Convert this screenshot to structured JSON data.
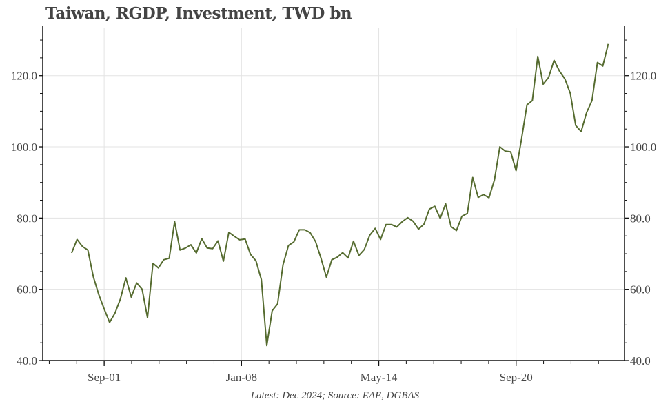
{
  "chart_data": {
    "type": "line",
    "title": "Taiwan, RGDP, Investment, TWD bn",
    "footer": "Latest: Dec 2024; Source: EAE, DGBAS",
    "xlabel": "",
    "ylabel": "",
    "ylim": [
      40,
      133.3
    ],
    "y_ticks": [
      40,
      60,
      80,
      100,
      120
    ],
    "y_tick_labels": [
      "40.0",
      "60.0",
      "80.0",
      "100.0",
      "120.0"
    ],
    "y_axis_both_sides": true,
    "x_ticks": [
      "2001-09",
      "2008-01",
      "2014-05",
      "2020-09"
    ],
    "x_tick_labels": [
      "Sep-01",
      "Jan-08",
      "May-14",
      "Sep-20"
    ],
    "xlim": [
      "1998-11",
      "2025-09"
    ],
    "grid": true,
    "line_color": "#556b2f",
    "frequency": "quarterly",
    "x": [
      "2000-03",
      "2000-06",
      "2000-09",
      "2000-12",
      "2001-03",
      "2001-06",
      "2001-09",
      "2001-12",
      "2002-03",
      "2002-06",
      "2002-09",
      "2002-12",
      "2003-03",
      "2003-06",
      "2003-09",
      "2003-12",
      "2004-03",
      "2004-06",
      "2004-09",
      "2004-12",
      "2005-03",
      "2005-06",
      "2005-09",
      "2005-12",
      "2006-03",
      "2006-06",
      "2006-09",
      "2006-12",
      "2007-03",
      "2007-06",
      "2007-09",
      "2007-12",
      "2008-03",
      "2008-06",
      "2008-09",
      "2008-12",
      "2009-03",
      "2009-06",
      "2009-09",
      "2009-12",
      "2010-03",
      "2010-06",
      "2010-09",
      "2010-12",
      "2011-03",
      "2011-06",
      "2011-09",
      "2011-12",
      "2012-03",
      "2012-06",
      "2012-09",
      "2012-12",
      "2013-03",
      "2013-06",
      "2013-09",
      "2013-12",
      "2014-03",
      "2014-06",
      "2014-09",
      "2014-12",
      "2015-03",
      "2015-06",
      "2015-09",
      "2015-12",
      "2016-03",
      "2016-06",
      "2016-09",
      "2016-12",
      "2017-03",
      "2017-06",
      "2017-09",
      "2017-12",
      "2018-03",
      "2018-06",
      "2018-09",
      "2018-12",
      "2019-03",
      "2019-06",
      "2019-09",
      "2019-12",
      "2020-03",
      "2020-06",
      "2020-09",
      "2020-12",
      "2021-03",
      "2021-06",
      "2021-09",
      "2021-12",
      "2022-03",
      "2022-06",
      "2022-09",
      "2022-12",
      "2023-03",
      "2023-06",
      "2023-09",
      "2023-12",
      "2024-03",
      "2024-06",
      "2024-09",
      "2024-12"
    ],
    "series": [
      {
        "values": [
          70.2,
          74.0,
          72.0,
          71.0,
          63.5,
          58.5,
          54.5,
          50.7,
          53.3,
          57.3,
          63.2,
          57.8,
          61.8,
          60.0,
          52.0,
          67.3,
          66.0,
          68.3,
          68.7,
          79.0,
          71.0,
          71.6,
          72.5,
          70.2,
          74.2,
          71.6,
          71.4,
          73.6,
          67.9,
          76.0,
          74.9,
          73.9,
          74.1,
          69.8,
          68.0,
          62.7,
          44.2,
          54.0,
          55.9,
          66.9,
          72.3,
          73.3,
          76.7,
          76.7,
          75.9,
          73.4,
          68.7,
          63.4,
          68.3,
          69.0,
          70.3,
          68.8,
          73.5,
          69.5,
          71.2,
          75.2,
          77.1,
          74.0,
          78.2,
          78.2,
          77.5,
          79.0,
          80.1,
          79.1,
          76.9,
          78.3,
          82.5,
          83.3,
          79.9,
          84.0,
          77.6,
          76.5,
          80.5,
          81.3,
          91.4,
          85.8,
          86.6,
          85.7,
          90.7,
          100.0,
          98.8,
          98.6,
          93.3,
          102.2,
          111.8,
          113.0,
          125.4,
          117.6,
          119.5,
          124.3,
          121.3,
          119.1,
          115.0,
          106.0,
          104.3,
          109.6,
          113.0,
          123.7,
          122.7,
          128.9
        ]
      }
    ]
  }
}
